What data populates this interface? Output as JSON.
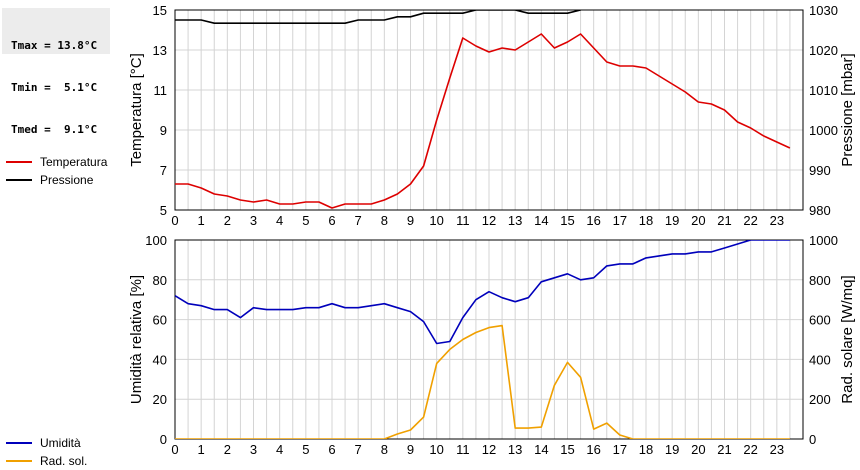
{
  "stats": {
    "tmax": "Tmax = 13.8°C",
    "tmin": "Tmin =  5.1°C",
    "tmed": "Tmed =  9.1°C"
  },
  "legend_top": [
    {
      "label": "Temperatura",
      "color": "#dd0000"
    },
    {
      "label": "Pressione",
      "color": "#000000"
    }
  ],
  "legend_bottom": [
    {
      "label": "Umidità",
      "color": "#0000bb"
    },
    {
      "label": "Rad. sol.",
      "color": "#f0a000"
    }
  ],
  "chart_data": [
    {
      "type": "line",
      "xlim": [
        0,
        24
      ],
      "xticks": [
        0,
        1,
        2,
        3,
        4,
        5,
        6,
        7,
        8,
        9,
        10,
        11,
        12,
        13,
        14,
        15,
        16,
        17,
        18,
        19,
        20,
        21,
        22,
        23
      ],
      "ylabel": "Temperatura [°C]",
      "ylim": [
        5,
        15
      ],
      "yticks": [
        5,
        7,
        9,
        11,
        13,
        15
      ],
      "y2label": "Pressione [mbar]",
      "y2lim": [
        980,
        1030
      ],
      "y2ticks": [
        980,
        990,
        1000,
        1010,
        1020,
        1030
      ],
      "grid": true,
      "series": [
        {
          "name": "Temperatura",
          "axis": "left",
          "color": "#dd0000",
          "x": [
            0,
            0.5,
            1,
            1.5,
            2,
            2.5,
            3,
            3.5,
            4,
            4.5,
            5,
            5.5,
            6,
            6.5,
            7,
            7.5,
            8,
            8.5,
            9,
            9.5,
            10,
            10.5,
            11,
            11.5,
            12,
            12.5,
            13,
            13.5,
            14,
            14.5,
            15,
            15.5,
            16,
            16.5,
            17,
            17.5,
            18,
            18.5,
            19,
            19.5,
            20,
            20.5,
            21,
            21.5,
            22,
            22.5,
            23,
            23.5
          ],
          "y": [
            6.3,
            6.3,
            6.1,
            5.8,
            5.7,
            5.5,
            5.4,
            5.5,
            5.3,
            5.3,
            5.4,
            5.4,
            5.1,
            5.3,
            5.3,
            5.3,
            5.5,
            5.8,
            6.3,
            7.2,
            9.5,
            11.6,
            13.6,
            13.2,
            12.9,
            13.1,
            13.0,
            13.4,
            13.8,
            13.1,
            13.4,
            13.8,
            13.1,
            12.4,
            12.2,
            12.2,
            12.1,
            11.7,
            11.3,
            10.9,
            10.4,
            10.3,
            10.0,
            9.4,
            9.1,
            8.7,
            8.4,
            8.1
          ]
        },
        {
          "name": "Pressione",
          "axis": "right",
          "color": "#000000",
          "x": [
            0,
            1,
            1.5,
            2,
            2.5,
            3,
            3.5,
            4,
            4.5,
            5,
            5.5,
            6,
            6.5,
            7,
            7.5,
            8,
            8.5,
            9,
            9.5,
            10,
            10.5,
            11,
            11.5,
            12,
            12.5,
            13,
            13.5,
            14,
            14.5,
            15,
            15.5
          ],
          "y": [
            1027.5,
            1027.5,
            1026.7,
            1026.7,
            1026.7,
            1026.7,
            1026.7,
            1026.7,
            1026.7,
            1026.7,
            1026.7,
            1026.7,
            1026.7,
            1027.5,
            1027.5,
            1027.5,
            1028.3,
            1028.3,
            1029.2,
            1029.2,
            1029.2,
            1029.2,
            1030,
            1030,
            1030,
            1030,
            1029.2,
            1029.2,
            1029.2,
            1029.2,
            1030
          ]
        }
      ]
    },
    {
      "type": "line",
      "xlim": [
        0,
        24
      ],
      "xticks": [
        0,
        1,
        2,
        3,
        4,
        5,
        6,
        7,
        8,
        9,
        10,
        11,
        12,
        13,
        14,
        15,
        16,
        17,
        18,
        19,
        20,
        21,
        22,
        23
      ],
      "ylabel": "Umidità relativa [%]",
      "ylim": [
        0,
        100
      ],
      "yticks": [
        0,
        20,
        40,
        60,
        80,
        100
      ],
      "y2label": "Rad. solare [W/mq]",
      "y2lim": [
        0,
        1000
      ],
      "y2ticks": [
        0,
        200,
        400,
        600,
        800,
        1000
      ],
      "grid": true,
      "series": [
        {
          "name": "Umidità",
          "axis": "left",
          "color": "#0000bb",
          "x": [
            0,
            0.5,
            1,
            1.5,
            2,
            2.5,
            3,
            3.5,
            4,
            4.5,
            5,
            5.5,
            6,
            6.5,
            7,
            7.5,
            8,
            8.5,
            9,
            9.5,
            10,
            10.5,
            11,
            11.5,
            12,
            12.5,
            13,
            13.5,
            14,
            14.5,
            15,
            15.5,
            16,
            16.5,
            17,
            17.5,
            18,
            18.5,
            19,
            19.5,
            20,
            20.5,
            21,
            21.5,
            22,
            22.5,
            23,
            23.5
          ],
          "y": [
            72,
            68,
            67,
            65,
            65,
            61,
            66,
            65,
            65,
            65,
            66,
            66,
            68,
            66,
            66,
            67,
            68,
            66,
            64,
            59,
            48,
            49,
            61,
            70,
            74,
            71,
            69,
            71,
            79,
            81,
            83,
            80,
            81,
            87,
            88,
            88,
            91,
            92,
            93,
            93,
            94,
            94,
            96,
            98,
            100,
            100,
            100,
            100
          ]
        },
        {
          "name": "Rad. sol.",
          "axis": "right",
          "color": "#f0a000",
          "x": [
            0,
            0.5,
            1,
            1.5,
            2,
            2.5,
            3,
            3.5,
            4,
            4.5,
            5,
            5.5,
            6,
            6.5,
            7,
            7.5,
            8,
            8.5,
            9,
            9.5,
            10,
            10.5,
            11,
            11.5,
            12,
            12.5,
            13,
            13.5,
            14,
            14.5,
            15,
            15.5,
            16,
            16.5,
            17,
            17.5,
            18,
            18.5,
            19,
            19.5,
            20,
            20.5,
            21,
            21.5,
            22,
            22.5,
            23,
            23.5
          ],
          "y": [
            0,
            0,
            0,
            0,
            0,
            0,
            0,
            0,
            0,
            0,
            0,
            0,
            0,
            0,
            0,
            0,
            0,
            25,
            45,
            110,
            380,
            450,
            500,
            535,
            560,
            570,
            55,
            55,
            60,
            270,
            385,
            310,
            50,
            80,
            20,
            0,
            0,
            0,
            0,
            0,
            0,
            0,
            0,
            0,
            0,
            0,
            0,
            0
          ]
        }
      ]
    }
  ]
}
